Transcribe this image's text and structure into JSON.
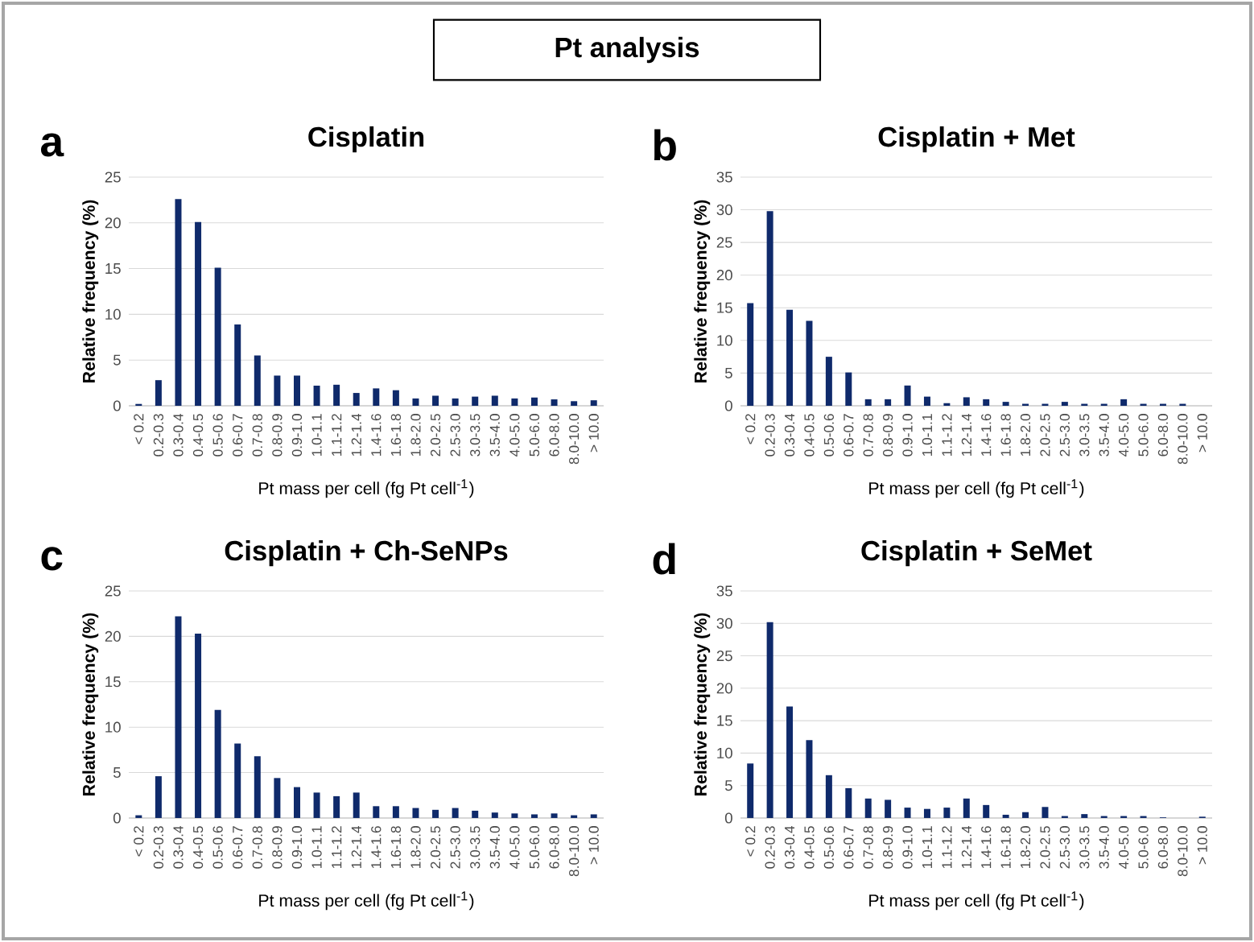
{
  "chart_data": [
    {
      "type": "bar",
      "title": "Cisplatin",
      "xlabel": "Pt mass per cell (fg Pt cell$^{-1}$)",
      "ylabel": "Relative frequency (%)",
      "annotations": [
        "a",
        "Pt analysis"
      ],
      "categories": [
        "< 0.2",
        "0.2-0.3",
        "0.3-0.4",
        "0.4-0.5",
        "0.5-0.6",
        "0.6-0.7",
        "0.7-0.8",
        "0.8-0.9",
        "0.9-1.0",
        "1.0-1.1",
        "1.1-1.2",
        "1.2-1.4",
        "1.4-1.6",
        "1.6-1.8",
        "1.8-2.0",
        "2.0-2.5",
        "2.5-3.0",
        "3.0-3.5",
        "3.5-4.0",
        "4.0-5.0",
        "5.0-6.0",
        "6.0-8.0",
        "8.0-10.0",
        "> 10.0"
      ],
      "values": [
        0.2,
        2.8,
        22.6,
        20.1,
        15.1,
        8.9,
        5.5,
        3.3,
        3.3,
        2.2,
        2.3,
        1.4,
        1.9,
        1.7,
        0.8,
        1.1,
        0.8,
        1.0,
        1.1,
        0.8,
        0.9,
        0.7,
        0.5,
        0.6
      ],
      "color": "#0f2a6b",
      "ylim": [
        0,
        25
      ],
      "yticks": [
        0,
        5,
        10,
        15,
        20,
        25
      ],
      "grid": "y"
    },
    {
      "type": "bar",
      "title": "Cisplatin + Met",
      "xlabel": "Pt mass per cell (fg Pt cell$^{-1}$)",
      "ylabel": "Relative frequency (%)",
      "annotations": [
        "b"
      ],
      "categories": [
        "< 0.2",
        "0.2-0.3",
        "0.3-0.4",
        "0.4-0.5",
        "0.5-0.6",
        "0.6-0.7",
        "0.7-0.8",
        "0.8-0.9",
        "0.9-1.0",
        "1.0-1.1",
        "1.1-1.2",
        "1.2-1.4",
        "1.4-1.6",
        "1.6-1.8",
        "1.8-2.0",
        "2.0-2.5",
        "2.5-3.0",
        "3.0-3.5",
        "3.5-4.0",
        "4.0-5.0",
        "5.0-6.0",
        "6.0-8.0",
        "8.0-10.0",
        "> 10.0"
      ],
      "values": [
        15.7,
        29.8,
        14.7,
        13.0,
        7.5,
        5.1,
        1.0,
        1.0,
        3.1,
        1.4,
        0.4,
        1.3,
        1.0,
        0.6,
        0.3,
        0.3,
        0.6,
        0.3,
        0.3,
        1.0,
        0.3,
        0.3,
        0.3,
        0
      ],
      "color": "#0f2a6b",
      "ylim": [
        0,
        35
      ],
      "yticks": [
        0,
        5,
        10,
        15,
        20,
        25,
        30,
        35
      ],
      "grid": "y"
    },
    {
      "type": "bar",
      "title": "Cisplatin + Ch-SeNPs",
      "xlabel": "Pt mass per cell (fg Pt cell$^{-1}$)",
      "ylabel": "Relative frequency (%)",
      "annotations": [
        "c"
      ],
      "categories": [
        "< 0.2",
        "0.2-0.3",
        "0.3-0.4",
        "0.4-0.5",
        "0.5-0.6",
        "0.6-0.7",
        "0.7-0.8",
        "0.8-0.9",
        "0.9-1.0",
        "1.0-1.1",
        "1.1-1.2",
        "1.2-1.4",
        "1.4-1.6",
        "1.6-1.8",
        "1.8-2.0",
        "2.0-2.5",
        "2.5-3.0",
        "3.0-3.5",
        "3.5-4.0",
        "4.0-5.0",
        "5.0-6.0",
        "6.0-8.0",
        "8.0-10.0",
        "> 10.0"
      ],
      "values": [
        0.3,
        4.6,
        22.2,
        20.3,
        11.9,
        8.2,
        6.8,
        4.4,
        3.4,
        2.8,
        2.4,
        2.8,
        1.3,
        1.3,
        1.1,
        0.9,
        1.1,
        0.8,
        0.6,
        0.5,
        0.4,
        0.5,
        0.3,
        0.4
      ],
      "color": "#0f2a6b",
      "ylim": [
        0,
        25
      ],
      "yticks": [
        0,
        5,
        10,
        15,
        20,
        25
      ],
      "grid": "y"
    },
    {
      "type": "bar",
      "title": "Cisplatin + SeMet",
      "xlabel": "Pt mass per cell (fg Pt cell$^{-1}$)",
      "ylabel": "Relative frequency (%)",
      "annotations": [
        "d"
      ],
      "categories": [
        "< 0.2",
        "0.2-0.3",
        "0.3-0.4",
        "0.4-0.5",
        "0.5-0.6",
        "0.6-0.7",
        "0.7-0.8",
        "0.8-0.9",
        "0.9-1.0",
        "1.0-1.1",
        "1.1-1.2",
        "1.2-1.4",
        "1.4-1.6",
        "1.6-1.8",
        "1.8-2.0",
        "2.0-2.5",
        "2.5-3.0",
        "3.0-3.5",
        "3.5-4.0",
        "4.0-5.0",
        "5.0-6.0",
        "6.0-8.0",
        "8.0-10.0",
        "> 10.0"
      ],
      "values": [
        8.4,
        30.2,
        17.2,
        12.0,
        6.6,
        4.6,
        3.0,
        2.8,
        1.6,
        1.4,
        1.6,
        3.0,
        2.0,
        0.5,
        0.9,
        1.7,
        0.3,
        0.6,
        0.3,
        0.3,
        0.3,
        0.1,
        0,
        0.2
      ],
      "color": "#0f2a6b",
      "ylim": [
        0,
        35
      ],
      "yticks": [
        0,
        5,
        10,
        15,
        20,
        25,
        30,
        35
      ],
      "grid": "y"
    }
  ]
}
